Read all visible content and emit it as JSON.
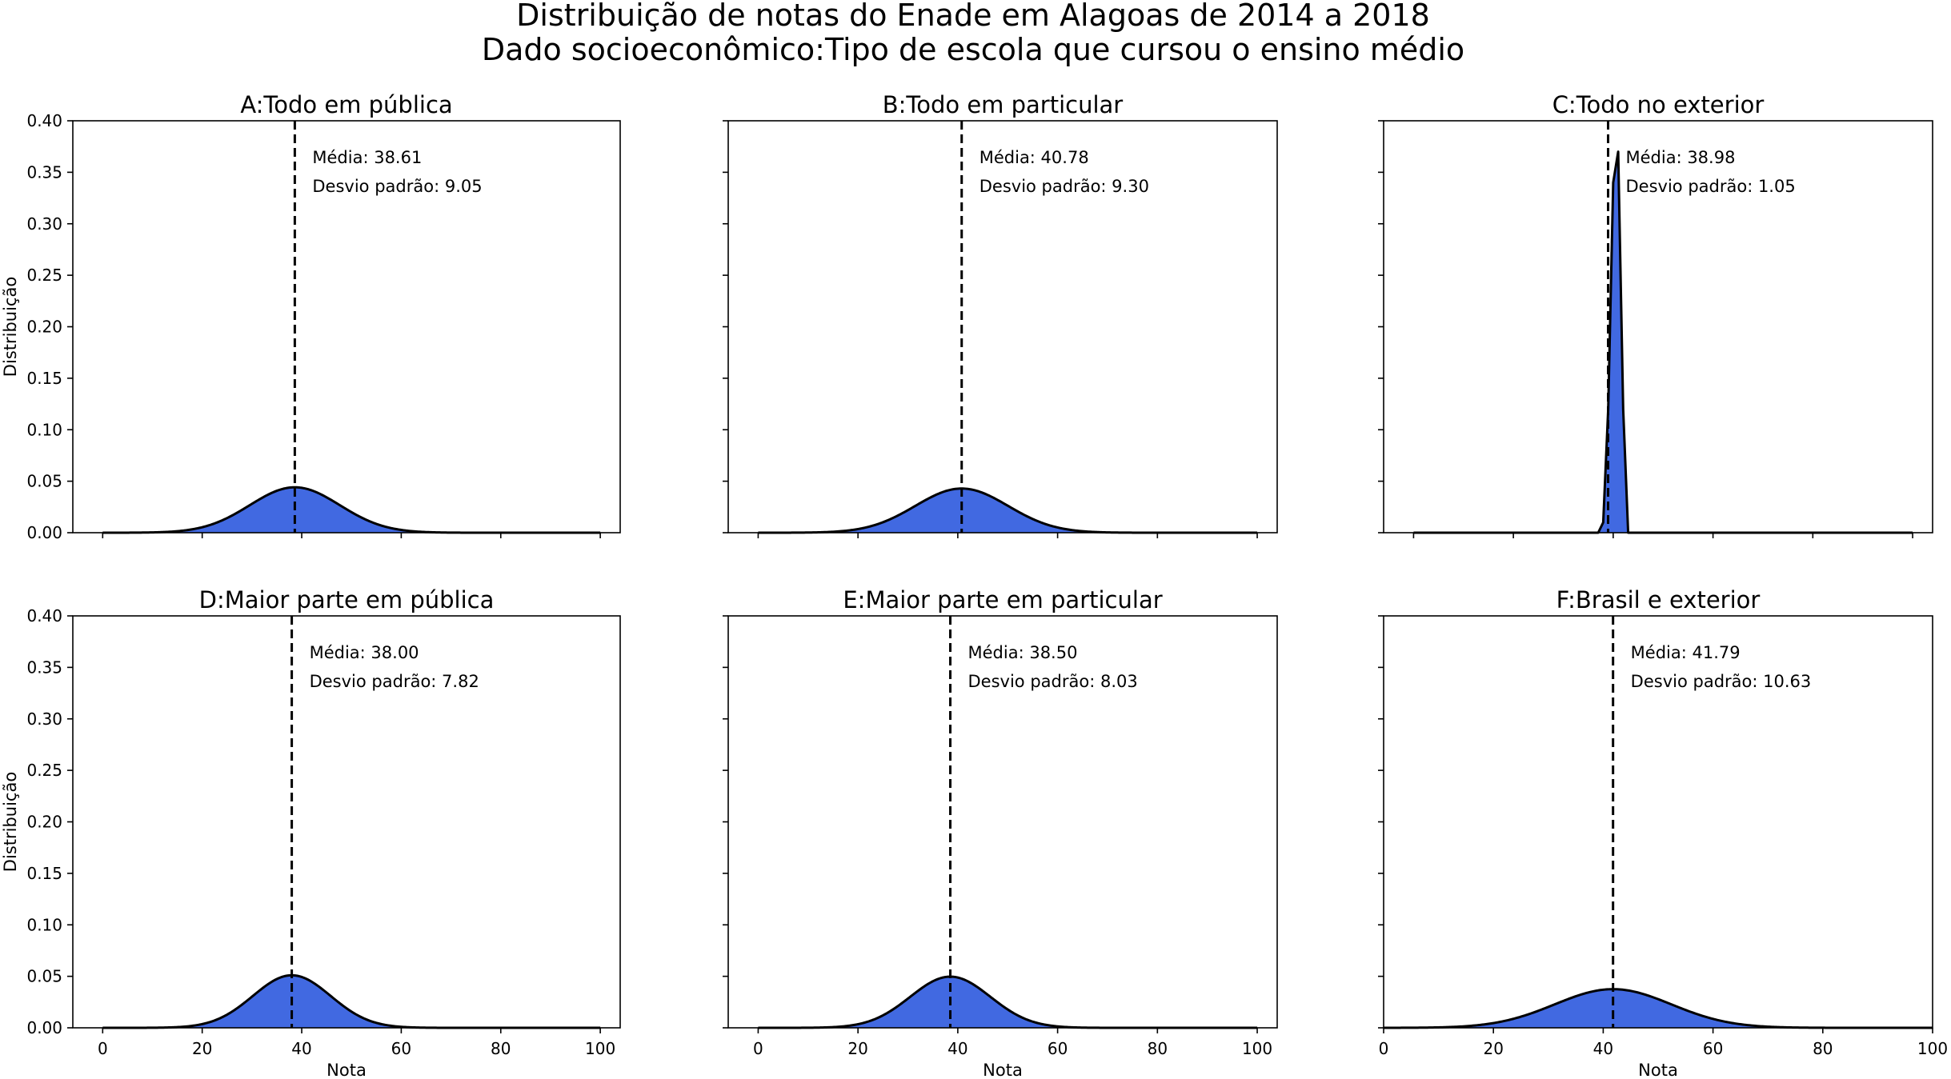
{
  "figure": {
    "title_line1": "Distribuição de notas do Enade em Alagoas de 2014 a 2018",
    "title_line2": "Dado socioeconômico:Tipo de escola que cursou o ensino médio"
  },
  "chart_data": [
    {
      "type": "area",
      "title": "A:Todo em pública",
      "mean": 38.61,
      "std": 9.05,
      "annotation_mean": "Média: 38.61",
      "annotation_std": "Desvio padrão: 9.05",
      "xlabel": "",
      "ylabel": "Distribuição",
      "xlim": [
        -6,
        104
      ],
      "ylim": [
        0,
        0.4
      ],
      "xticks": [
        "0",
        "20",
        "40",
        "60",
        "80",
        "100"
      ],
      "xticks_visible": false,
      "yticks": [
        "0.00",
        "0.05",
        "0.10",
        "0.15",
        "0.20",
        "0.25",
        "0.30",
        "0.35",
        "0.40"
      ],
      "yticks_visible": true,
      "fill_color": "#4169e1"
    },
    {
      "type": "area",
      "title": "B:Todo em particular",
      "mean": 40.78,
      "std": 9.3,
      "annotation_mean": "Média: 40.78",
      "annotation_std": "Desvio padrão: 9.30",
      "xlabel": "",
      "ylabel": "",
      "xlim": [
        -6,
        104
      ],
      "ylim": [
        0,
        0.4
      ],
      "xticks": [
        "0",
        "20",
        "40",
        "60",
        "80",
        "100"
      ],
      "xticks_visible": false,
      "yticks": [
        "0.00",
        "0.05",
        "0.10",
        "0.15",
        "0.20",
        "0.25",
        "0.30",
        "0.35",
        "0.40"
      ],
      "yticks_visible": false,
      "fill_color": "#4169e1"
    },
    {
      "type": "area",
      "title": "C:Todo no exterior",
      "mean": 38.98,
      "std": 1.05,
      "annotation_mean": "Média: 38.98",
      "annotation_std": "Desvio padrão: 1.05",
      "xlabel": "",
      "ylabel": "",
      "xlim": [
        -6,
        104
      ],
      "ylim": [
        0,
        0.4
      ],
      "xticks": [
        "0",
        "20",
        "40",
        "60",
        "80",
        "100"
      ],
      "xticks_visible": false,
      "yticks": [
        "0.00",
        "0.05",
        "0.10",
        "0.15",
        "0.20",
        "0.25",
        "0.30",
        "0.35",
        "0.40"
      ],
      "yticks_visible": false,
      "fill_color": "#4169e1",
      "x": [
        37,
        38,
        39,
        40,
        41,
        42,
        43
      ],
      "y": [
        0.0,
        0.01,
        0.12,
        0.34,
        0.37,
        0.12,
        0.0
      ]
    },
    {
      "type": "area",
      "title": "D:Maior parte em pública",
      "mean": 38.0,
      "std": 7.82,
      "annotation_mean": "Média: 38.00",
      "annotation_std": "Desvio padrão: 7.82",
      "xlabel": "",
      "ylabel": "Distribuição",
      "xlim": [
        -6,
        104
      ],
      "ylim": [
        0,
        0.4
      ],
      "xticks": [
        "0",
        "20",
        "40",
        "60",
        "80",
        "100"
      ],
      "xticks_visible": true,
      "yticks": [
        "0.00",
        "0.05",
        "0.10",
        "0.15",
        "0.20",
        "0.25",
        "0.30",
        "0.35",
        "0.40"
      ],
      "yticks_visible": true,
      "fill_color": "#4169e1"
    },
    {
      "type": "area",
      "title": "E:Maior parte em particular",
      "mean": 38.5,
      "std": 8.03,
      "annotation_mean": "Média: 38.50",
      "annotation_std": "Desvio padrão: 8.03",
      "xlabel": "Nota",
      "ylabel": "",
      "xlim": [
        -6,
        104
      ],
      "ylim": [
        0,
        0.4
      ],
      "xticks": [
        "0",
        "20",
        "40",
        "60",
        "80",
        "100"
      ],
      "xticks_visible": true,
      "yticks": [
        "0.00",
        "0.05",
        "0.10",
        "0.15",
        "0.20",
        "0.25",
        "0.30",
        "0.35",
        "0.40"
      ],
      "yticks_visible": false,
      "fill_color": "#4169e1"
    },
    {
      "type": "area",
      "title": "F:Brasil e exterior",
      "mean": 41.79,
      "std": 10.63,
      "annotation_mean": "Média: 41.79",
      "annotation_std": "Desvio padrão: 10.63",
      "xlabel": "Nota",
      "ylabel": "",
      "xlim": [
        0,
        100
      ],
      "ylim": [
        0,
        0.4
      ],
      "xticks": [
        "0",
        "20",
        "40",
        "60",
        "80",
        "100"
      ],
      "xticks_visible": true,
      "yticks": [
        "0.00",
        "0.05",
        "0.10",
        "0.15",
        "0.20",
        "0.25",
        "0.30",
        "0.35",
        "0.40"
      ],
      "yticks_visible": false,
      "fill_color": "#4169e1"
    }
  ],
  "first_column_xlabel": "Nota"
}
